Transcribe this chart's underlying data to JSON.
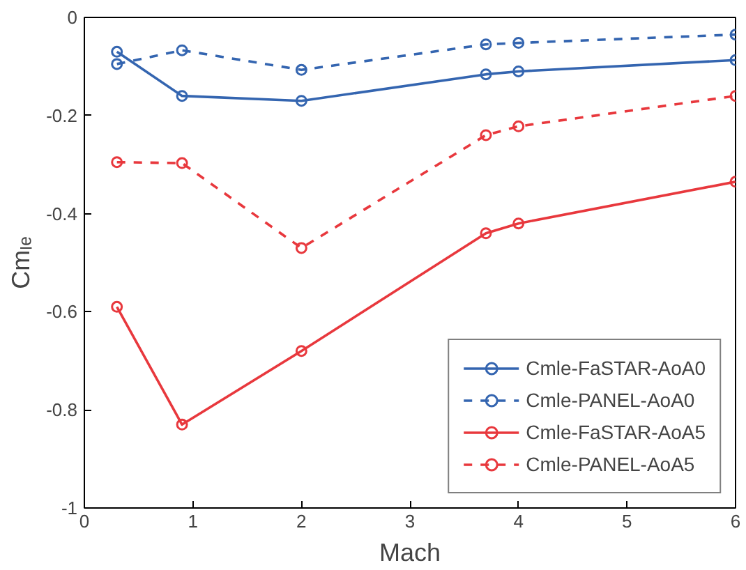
{
  "chart_data": {
    "type": "line",
    "xlabel": "Mach",
    "ylabel": "Cmₗₑ",
    "xlim": [
      0,
      6
    ],
    "ylim": [
      -1,
      0
    ],
    "xticks": [
      0,
      1,
      2,
      3,
      4,
      5,
      6
    ],
    "yticks": [
      -1,
      {
        "value": -0.8,
        "label": "-0.8"
      },
      {
        "value": -0.6,
        "label": "-0.6"
      },
      {
        "value": -0.4,
        "label": "-0.4"
      },
      {
        "value": -0.2,
        "label": "-0.2"
      },
      0
    ],
    "x": [
      0.3,
      0.9,
      2,
      3.7,
      4,
      6
    ],
    "grid": false,
    "legend": "bottom right",
    "marker": "circle",
    "series": [
      {
        "name": "Cmle-FaSTAR-AoA0",
        "color": "#3465b0",
        "line_style": "solid",
        "values": [
          -0.07,
          -0.16,
          -0.17,
          -0.116,
          -0.11,
          -0.087
        ]
      },
      {
        "name": "Cmle-PANEL-AoA0",
        "color": "#3465b0",
        "line_style": "dashed",
        "values": [
          -0.095,
          -0.067,
          -0.107,
          -0.055,
          -0.052,
          -0.035
        ]
      },
      {
        "name": "Cmle-FaSTAR-AoA5",
        "color": "#e8383d",
        "line_style": "solid",
        "values": [
          -0.59,
          -0.83,
          -0.68,
          -0.44,
          -0.42,
          -0.335
        ]
      },
      {
        "name": "Cmle-PANEL-AoA5",
        "color": "#e8383d",
        "line_style": "dashed",
        "values": [
          -0.295,
          -0.297,
          -0.47,
          -0.24,
          -0.222,
          -0.16
        ]
      }
    ]
  }
}
